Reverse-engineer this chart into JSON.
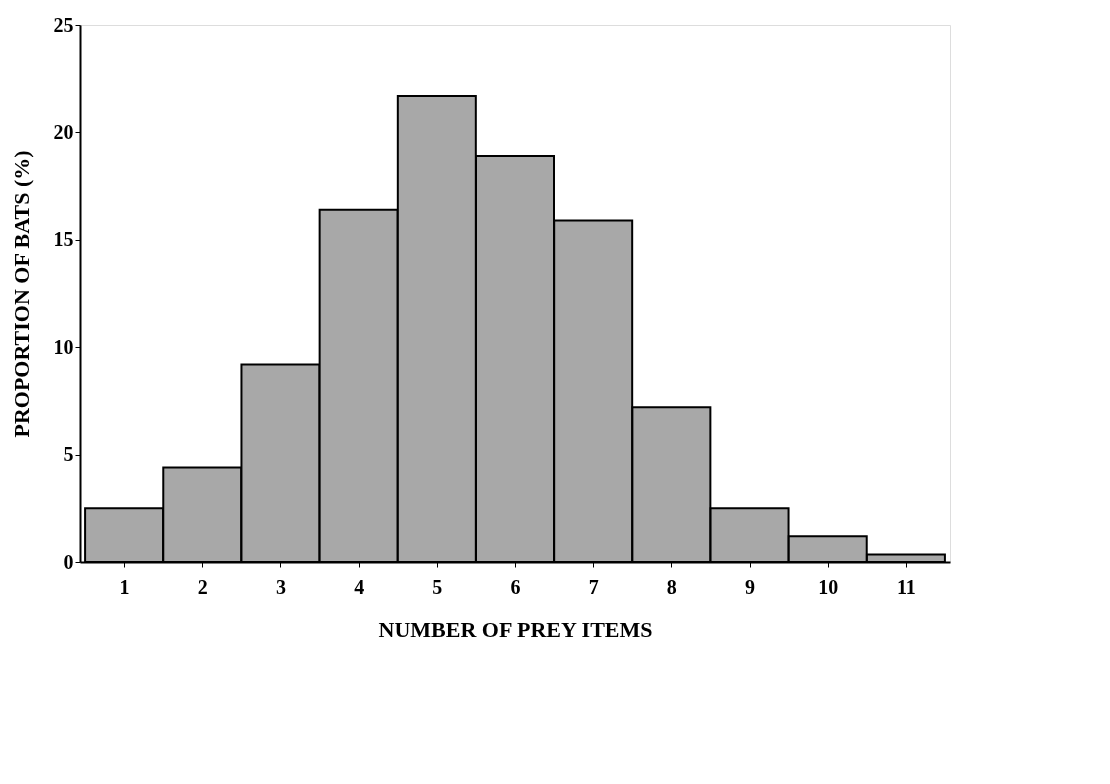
{
  "chart_data": {
    "type": "bar",
    "xlabel": "NUMBER OF PREY ITEMS",
    "ylabel": "PROPORTION OF BATS (%)",
    "categories": [
      "1",
      "2",
      "3",
      "4",
      "5",
      "6",
      "7",
      "8",
      "9",
      "10",
      "11"
    ],
    "values": [
      2.5,
      4.4,
      9.2,
      16.4,
      21.7,
      18.9,
      15.9,
      7.2,
      2.5,
      1.2,
      0.35
    ],
    "color": "#a8a8a8",
    "ylim": [
      0,
      25
    ],
    "yticks": [
      0,
      5,
      10,
      15,
      20,
      25
    ],
    "grid": false
  }
}
